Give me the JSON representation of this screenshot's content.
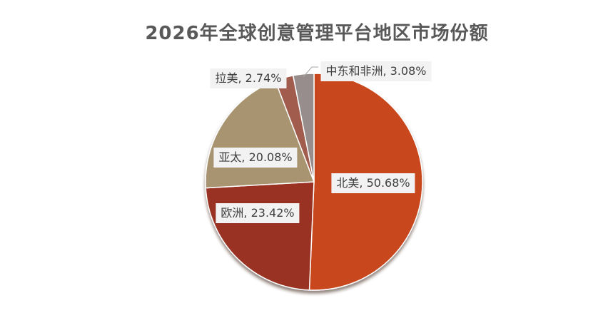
{
  "chart_data": {
    "type": "pie",
    "title": "2026年全球创意管理平台地区市场份额",
    "categories": [
      "北美",
      "欧洲",
      "亚太",
      "拉美",
      "中东和非洲"
    ],
    "values": [
      50.68,
      23.42,
      20.08,
      2.74,
      3.08
    ],
    "data_labels": [
      "北美, 50.68%",
      "欧洲, 23.42%",
      "亚太, 20.08%",
      "拉美, 2.74%",
      "中东和非洲, 3.08%"
    ],
    "colors": [
      "#C9471B",
      "#993120",
      "#A8946F",
      "#A15B4D",
      "#978D8D"
    ],
    "legend": "none"
  }
}
